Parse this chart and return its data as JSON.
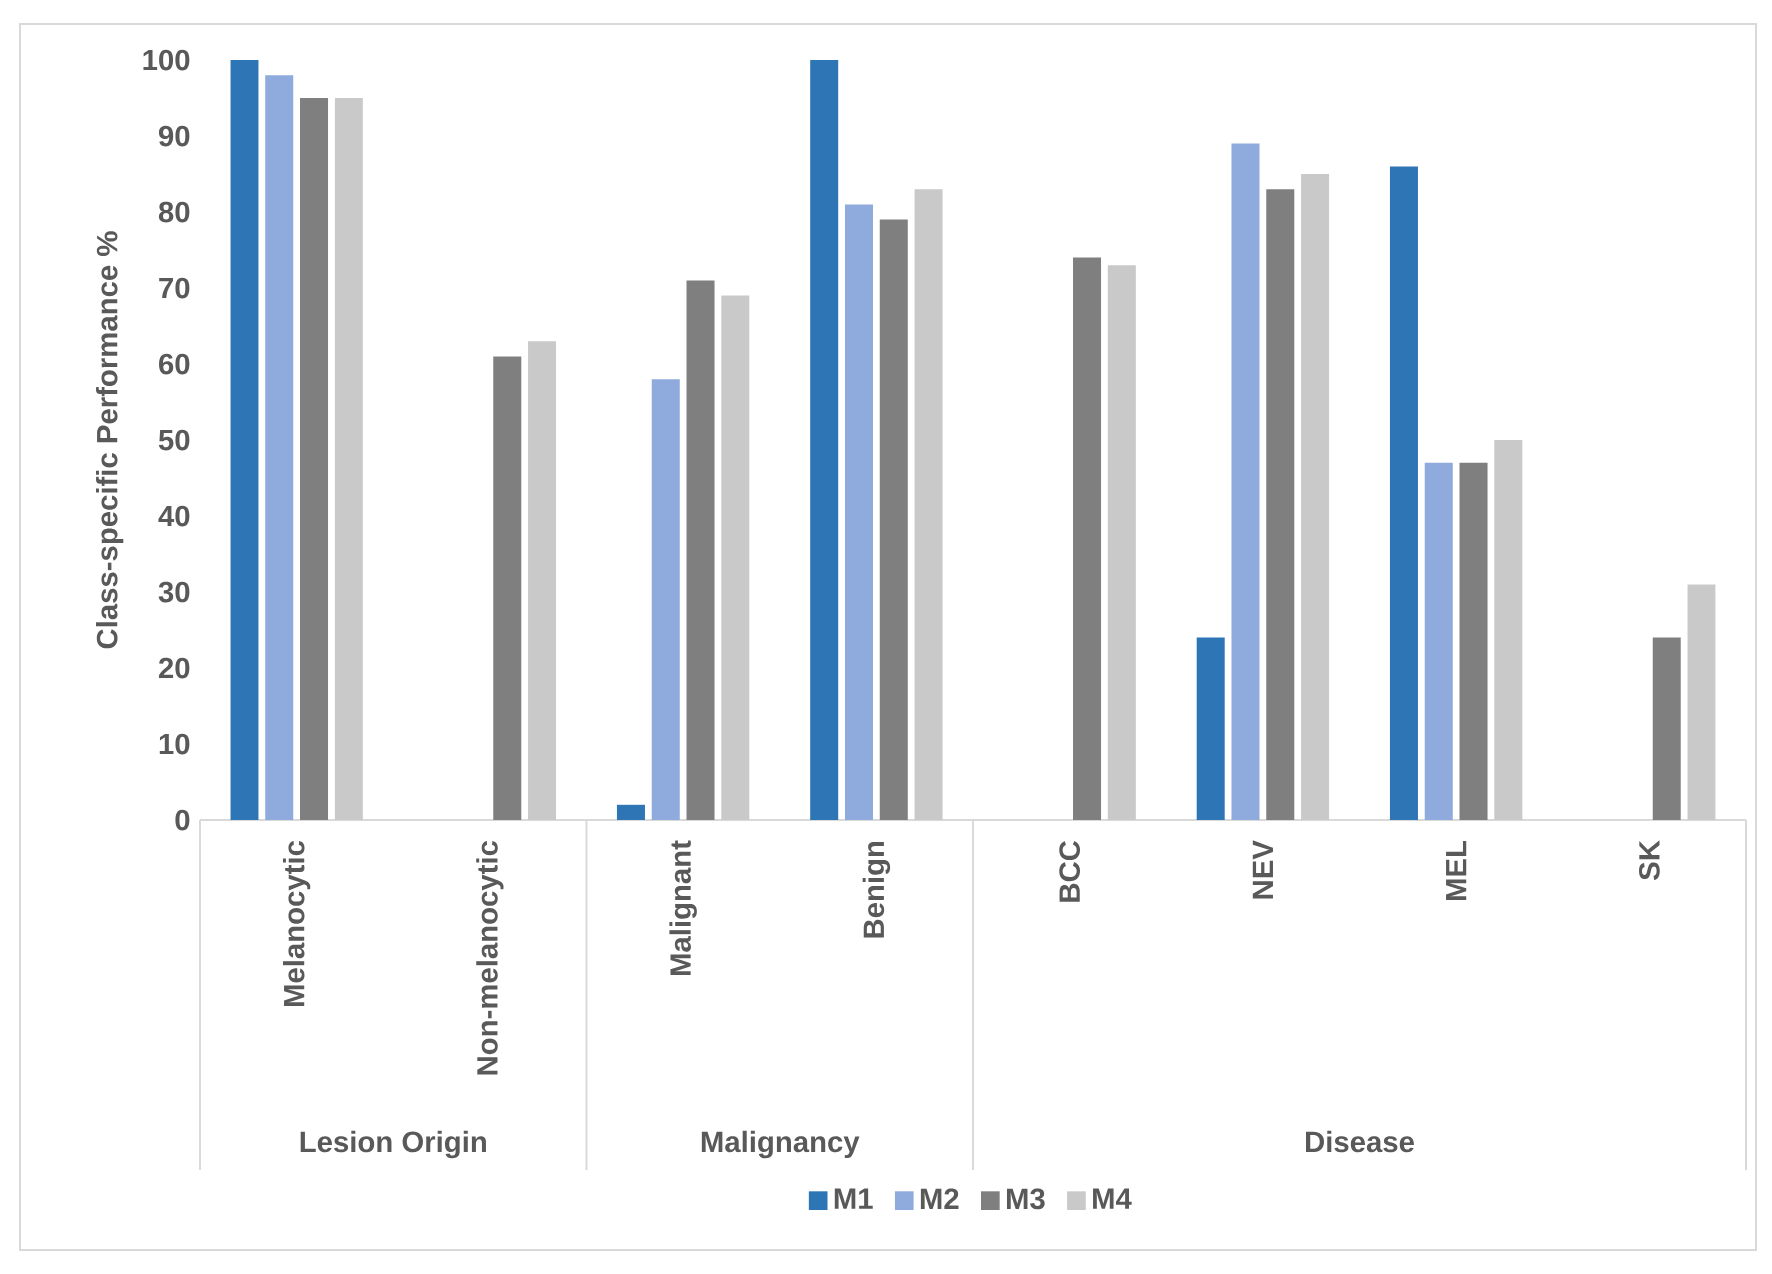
{
  "chart_data": {
    "type": "bar",
    "ylabel": "Class-specific Performance %",
    "categories": [
      "Melanocytic",
      "Non-melanocytic",
      "Malignant",
      "Benign",
      "BCC",
      "NEV",
      "MEL",
      "SK"
    ],
    "series": [
      {
        "name": "M1",
        "color": "#2e75b6",
        "values": [
          100,
          null,
          2,
          100,
          null,
          24,
          86,
          null
        ]
      },
      {
        "name": "M2",
        "color": "#8faadc",
        "values": [
          98,
          null,
          58,
          81,
          null,
          89,
          47,
          null
        ]
      },
      {
        "name": "M3",
        "color": "#7f7f7f",
        "values": [
          95,
          61,
          71,
          79,
          74,
          83,
          47,
          24
        ]
      },
      {
        "name": "M4",
        "color": "#c9c9c9",
        "values": [
          95,
          63,
          69,
          83,
          73,
          85,
          50,
          31
        ]
      }
    ],
    "ylim": [
      0,
      100
    ],
    "yticks": [
      0,
      10,
      20,
      30,
      40,
      50,
      60,
      70,
      80,
      90,
      100
    ],
    "annotations": [
      "Lesion Origin",
      "Malignancy",
      "Disease"
    ],
    "legend": "bottom"
  }
}
